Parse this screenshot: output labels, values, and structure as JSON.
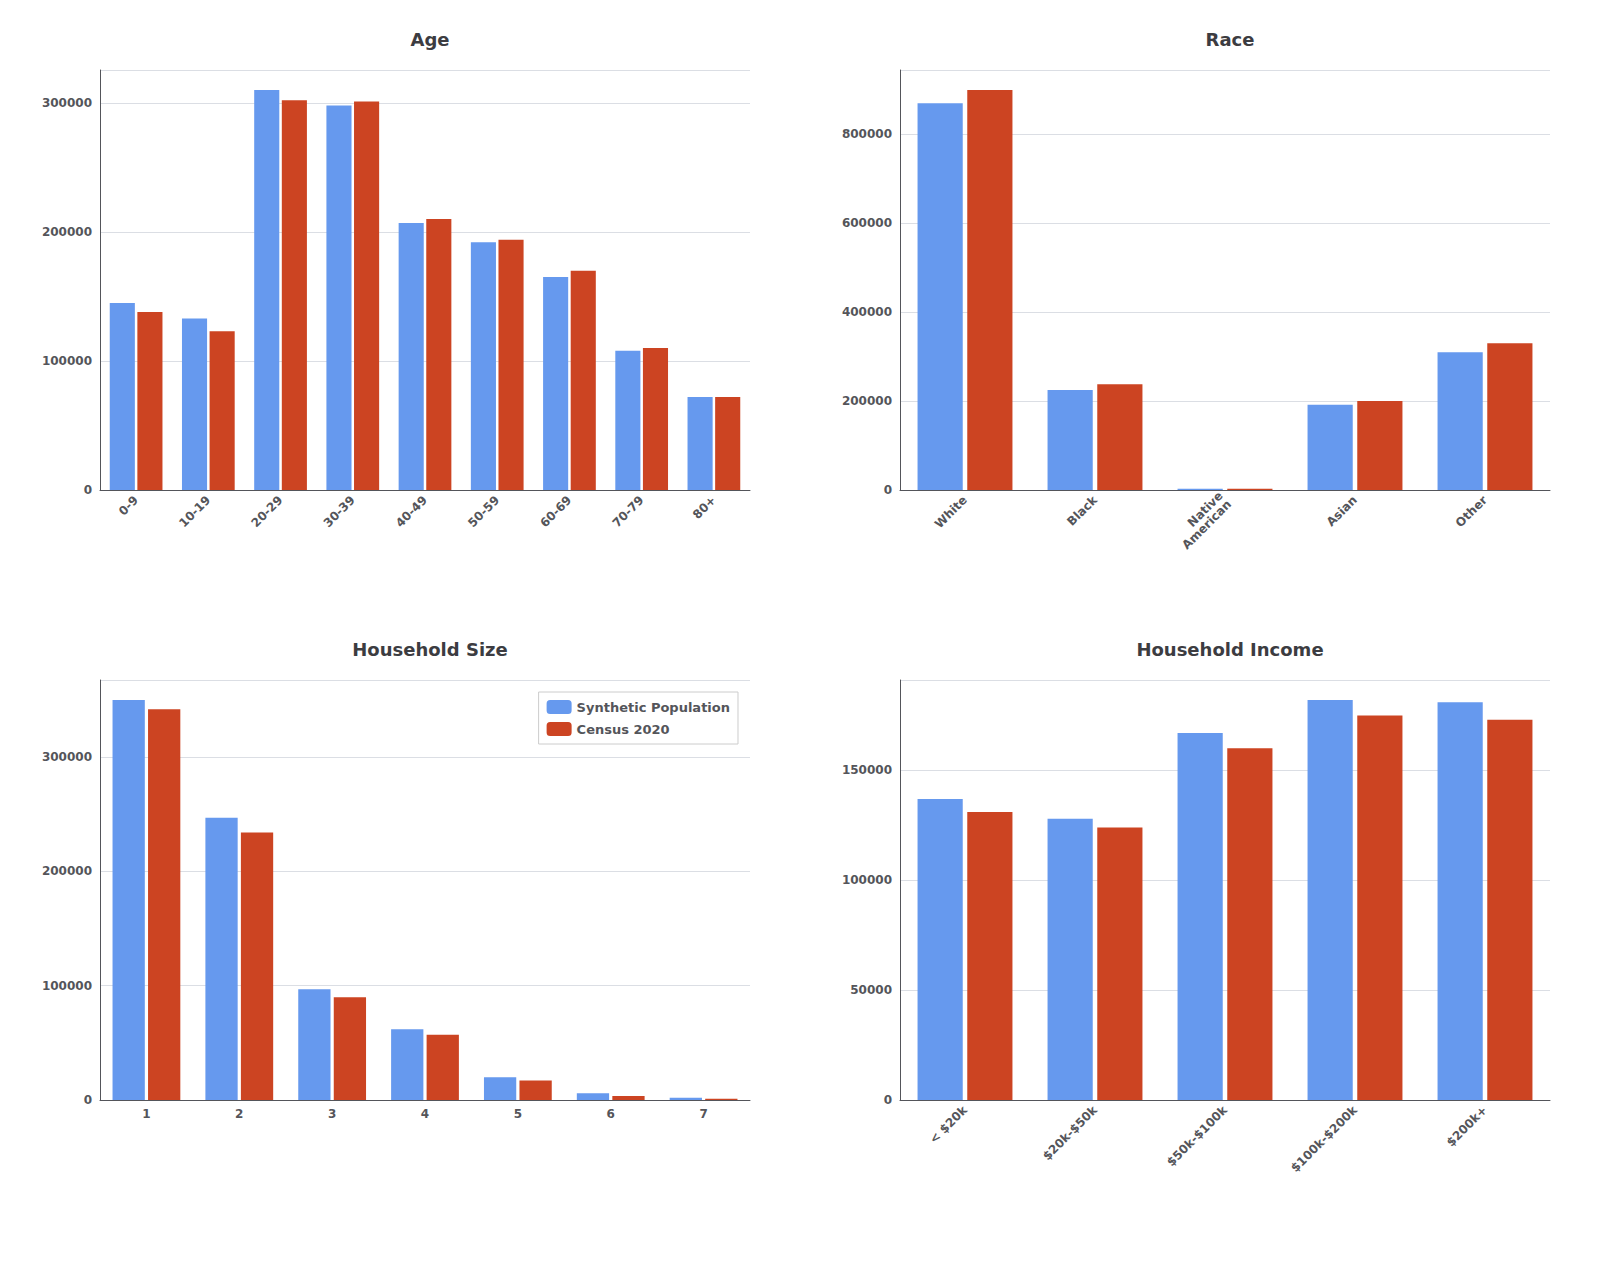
{
  "chart_data": [
    {
      "type": "bar",
      "title": "Age",
      "categories": [
        "0-9",
        "10-19",
        "20-29",
        "30-39",
        "40-49",
        "50-59",
        "60-69",
        "70-79",
        "80+"
      ],
      "series": [
        {
          "name": "Synthetic Population",
          "color": "#6699ee",
          "values": [
            145000,
            133000,
            310000,
            298000,
            207000,
            192000,
            165000,
            108000,
            72000
          ]
        },
        {
          "name": "Census 2020",
          "color": "#cc4422",
          "values": [
            138000,
            123000,
            302000,
            301000,
            210000,
            194000,
            170000,
            110000,
            72000
          ]
        }
      ],
      "ylim": [
        0,
        325500
      ],
      "yticks": [
        0,
        100000,
        200000,
        300000
      ],
      "grid": true
    },
    {
      "type": "bar",
      "title": "Race",
      "categories": [
        "White",
        "Black",
        "Native\nAmerican",
        "Asian",
        "Other"
      ],
      "series": [
        {
          "name": "Synthetic Population",
          "color": "#6699ee",
          "values": [
            870000,
            225000,
            3000,
            192000,
            310000
          ]
        },
        {
          "name": "Census 2020",
          "color": "#cc4422",
          "values": [
            900000,
            238000,
            3000,
            200000,
            330000
          ]
        }
      ],
      "ylim": [
        0,
        945000
      ],
      "yticks": [
        0,
        200000,
        400000,
        600000,
        800000
      ],
      "grid": true
    },
    {
      "type": "bar",
      "title": "Household Size",
      "categories": [
        "1",
        "2",
        "3",
        "4",
        "5",
        "6",
        "7"
      ],
      "series": [
        {
          "name": "Synthetic Population",
          "color": "#6699ee",
          "values": [
            350000,
            247000,
            97000,
            62000,
            20000,
            6000,
            2000
          ]
        },
        {
          "name": "Census 2020",
          "color": "#cc4422",
          "values": [
            342000,
            234000,
            90000,
            57000,
            17000,
            3500,
            1200
          ]
        }
      ],
      "ylim": [
        0,
        367500
      ],
      "yticks": [
        0,
        100000,
        200000,
        300000
      ],
      "grid": true,
      "legend": "upper right"
    },
    {
      "type": "bar",
      "title": "Household Income",
      "categories": [
        "< $20k",
        "$20k-$50k",
        "$50k-$100k",
        "$100k-$200k",
        "$200k+"
      ],
      "series": [
        {
          "name": "Synthetic Population",
          "color": "#6699ee",
          "values": [
            137000,
            128000,
            167000,
            182000,
            181000
          ]
        },
        {
          "name": "Census 2020",
          "color": "#cc4422",
          "values": [
            131000,
            124000,
            160000,
            175000,
            173000
          ]
        }
      ],
      "ylim": [
        0,
        191100
      ],
      "yticks": [
        0,
        50000,
        100000,
        150000
      ],
      "grid": true
    }
  ]
}
